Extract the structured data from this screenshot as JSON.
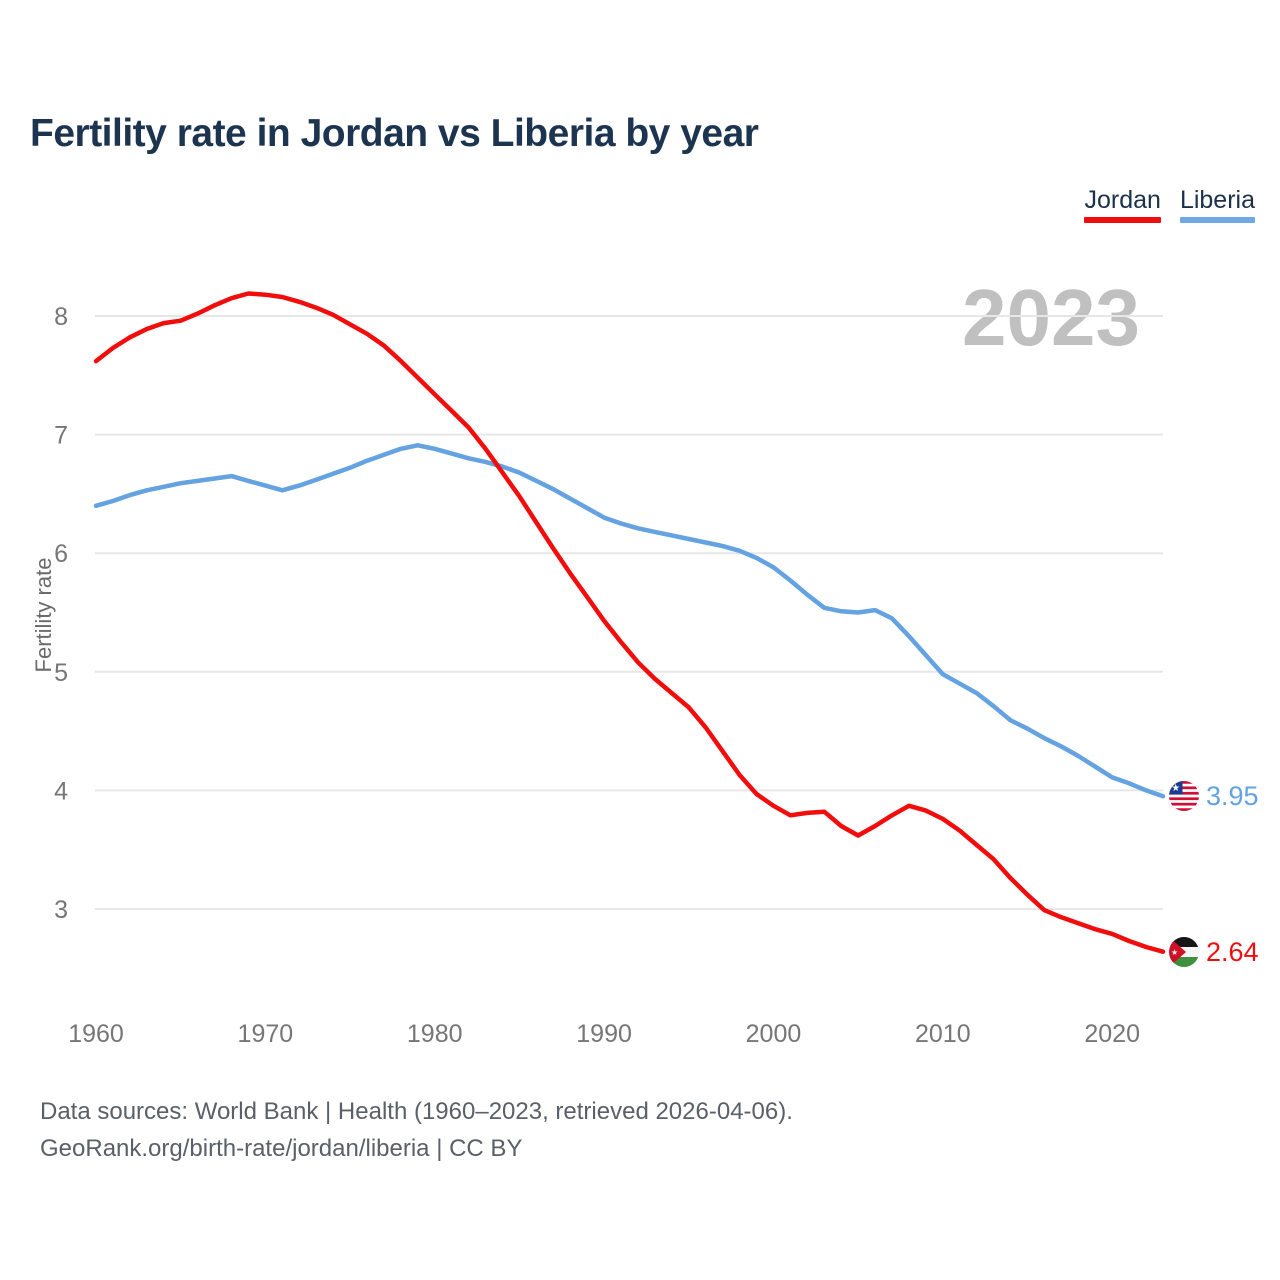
{
  "header": {
    "title": "Fertility rate in Jordan vs Liberia by year"
  },
  "legend": {
    "items": [
      {
        "label": "Jordan",
        "color": "#f20d0d"
      },
      {
        "label": "Liberia",
        "color": "#6fa8e2"
      }
    ]
  },
  "watermark": "2023",
  "end_labels": [
    {
      "series": "Liberia",
      "value": "3.95",
      "color": "#64a2e1",
      "flag_icon": "liberia-flag-icon"
    },
    {
      "series": "Jordan",
      "value": "2.64",
      "color": "#f20d0d",
      "flag_icon": "jordan-flag-icon"
    }
  ],
  "footer": {
    "line1": "Data sources: World Bank | Health (1960–2023, retrieved 2026-04-06).",
    "line2": "GeoRank.org/birth-rate/jordan/liberia | CC BY"
  },
  "chart_data": {
    "type": "line",
    "title": "Fertility rate in Jordan vs Liberia by year",
    "xlabel": "",
    "ylabel": "Fertility rate",
    "x_range": [
      1960,
      2023
    ],
    "ylim": [
      2.4,
      8.6
    ],
    "grid": "horizontal",
    "legend_position": "top-right",
    "y_ticks": [
      8,
      7,
      6,
      5,
      4,
      3
    ],
    "x_ticks": [
      1960,
      1970,
      1980,
      1990,
      2000,
      2010,
      2020
    ],
    "x": [
      1960,
      1961,
      1962,
      1963,
      1964,
      1965,
      1966,
      1967,
      1968,
      1969,
      1970,
      1971,
      1972,
      1973,
      1974,
      1975,
      1976,
      1977,
      1978,
      1979,
      1980,
      1981,
      1982,
      1983,
      1984,
      1985,
      1986,
      1987,
      1988,
      1989,
      1990,
      1991,
      1992,
      1993,
      1994,
      1995,
      1996,
      1997,
      1998,
      1999,
      2000,
      2001,
      2002,
      2003,
      2004,
      2005,
      2006,
      2007,
      2008,
      2009,
      2010,
      2011,
      2012,
      2013,
      2014,
      2015,
      2016,
      2017,
      2018,
      2019,
      2020,
      2021,
      2022,
      2023
    ],
    "series": [
      {
        "name": "Jordan",
        "color": "#f20d0d",
        "end_value": 2.64,
        "values": [
          7.62,
          7.73,
          7.82,
          7.89,
          7.94,
          7.96,
          8.02,
          8.09,
          8.15,
          8.19,
          8.18,
          8.16,
          8.12,
          8.07,
          8.01,
          7.93,
          7.85,
          7.75,
          7.62,
          7.48,
          7.34,
          7.2,
          7.06,
          6.88,
          6.68,
          6.48,
          6.26,
          6.04,
          5.83,
          5.63,
          5.43,
          5.25,
          5.08,
          4.94,
          4.82,
          4.7,
          4.53,
          4.33,
          4.13,
          3.97,
          3.87,
          3.79,
          3.81,
          3.82,
          3.7,
          3.62,
          3.7,
          3.79,
          3.87,
          3.83,
          3.76,
          3.66,
          3.54,
          3.42,
          3.26,
          3.12,
          2.99,
          2.93,
          2.88,
          2.83,
          2.79,
          2.73,
          2.68,
          2.64
        ]
      },
      {
        "name": "Liberia",
        "color": "#64a2e1",
        "end_value": 3.95,
        "values": [
          6.4,
          6.44,
          6.49,
          6.53,
          6.56,
          6.59,
          6.61,
          6.63,
          6.65,
          6.61,
          6.57,
          6.53,
          6.57,
          6.62,
          6.67,
          6.72,
          6.78,
          6.83,
          6.88,
          6.91,
          6.88,
          6.84,
          6.8,
          6.77,
          6.73,
          6.68,
          6.61,
          6.54,
          6.46,
          6.38,
          6.3,
          6.25,
          6.21,
          6.18,
          6.15,
          6.12,
          6.09,
          6.06,
          6.02,
          5.96,
          5.88,
          5.77,
          5.65,
          5.54,
          5.51,
          5.5,
          5.52,
          5.45,
          5.3,
          5.14,
          4.98,
          4.9,
          4.82,
          4.71,
          4.59,
          4.52,
          4.44,
          4.37,
          4.29,
          4.2,
          4.11,
          4.06,
          4.0,
          3.95
        ]
      }
    ]
  }
}
